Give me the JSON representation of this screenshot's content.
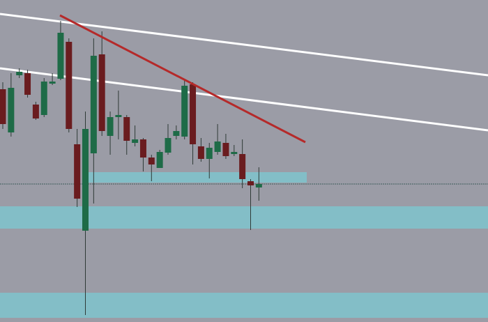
{
  "chart_data": {
    "type": "candlestick",
    "ylim": [
      0,
      462
    ],
    "up_color": "#1e6b47",
    "down_color": "#6a1c1f",
    "wick_color": "#2e3a36",
    "candles": [
      {
        "open": 334,
        "high": 344,
        "low": 277,
        "close": 284
      },
      {
        "open": 272,
        "high": 357,
        "low": 266,
        "close": 336
      },
      {
        "open": 354,
        "high": 364,
        "low": 350,
        "close": 359
      },
      {
        "open": 357,
        "high": 362,
        "low": 322,
        "close": 326
      },
      {
        "open": 312,
        "high": 316,
        "low": 290,
        "close": 292
      },
      {
        "open": 297,
        "high": 350,
        "low": 294,
        "close": 345
      },
      {
        "open": 342,
        "high": 357,
        "low": 340,
        "close": 345
      },
      {
        "open": 349,
        "high": 432,
        "low": 347,
        "close": 415
      },
      {
        "open": 402,
        "high": 407,
        "low": 272,
        "close": 277
      },
      {
        "open": 255,
        "high": 277,
        "low": 165,
        "close": 177
      },
      {
        "open": 131,
        "high": 302,
        "low": 10,
        "close": 277
      },
      {
        "open": 242,
        "high": 407,
        "low": 170,
        "close": 382
      },
      {
        "open": 384,
        "high": 417,
        "low": 267,
        "close": 274
      },
      {
        "open": 267,
        "high": 302,
        "low": 240,
        "close": 294
      },
      {
        "open": 294,
        "high": 332,
        "low": 262,
        "close": 297
      },
      {
        "open": 294,
        "high": 297,
        "low": 240,
        "close": 260
      },
      {
        "open": 257,
        "high": 282,
        "low": 252,
        "close": 262
      },
      {
        "open": 262,
        "high": 264,
        "low": 216,
        "close": 236
      },
      {
        "open": 236,
        "high": 240,
        "low": 202,
        "close": 226
      },
      {
        "open": 221,
        "high": 247,
        "low": 221,
        "close": 244
      },
      {
        "open": 243,
        "high": 284,
        "low": 240,
        "close": 264
      },
      {
        "open": 267,
        "high": 282,
        "low": 262,
        "close": 274
      },
      {
        "open": 266,
        "high": 347,
        "low": 262,
        "close": 339
      },
      {
        "open": 341,
        "high": 344,
        "low": 226,
        "close": 255
      },
      {
        "open": 252,
        "high": 264,
        "low": 230,
        "close": 234
      },
      {
        "open": 234,
        "high": 257,
        "low": 206,
        "close": 250
      },
      {
        "open": 244,
        "high": 284,
        "low": 240,
        "close": 259
      },
      {
        "open": 257,
        "high": 270,
        "low": 234,
        "close": 238
      },
      {
        "open": 241,
        "high": 254,
        "low": 238,
        "close": 244
      },
      {
        "open": 241,
        "high": 262,
        "low": 192,
        "close": 205
      },
      {
        "open": 202,
        "high": 205,
        "low": 132,
        "close": 196
      },
      {
        "open": 193,
        "high": 222,
        "low": 174,
        "close": 198
      }
    ]
  }
}
